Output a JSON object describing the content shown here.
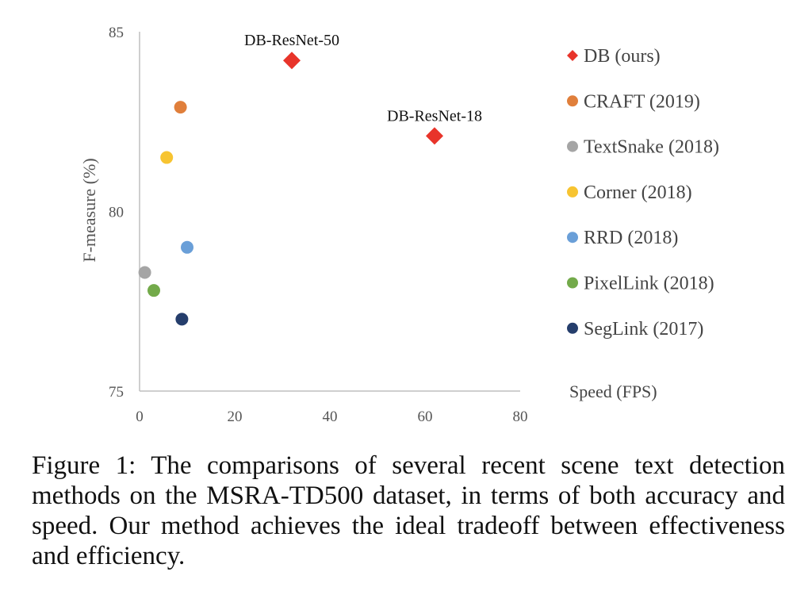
{
  "chart_data": {
    "type": "scatter",
    "xlabel": "Speed (FPS)",
    "ylabel": "F-measure (%)",
    "xlim": [
      0,
      80
    ],
    "ylim": [
      75,
      85
    ],
    "xticks": [
      "0",
      "20",
      "40",
      "60",
      "80"
    ],
    "yticks": [
      "75",
      "80",
      "85"
    ],
    "grid": false,
    "legend_position": "right",
    "series": [
      {
        "name": "DB (ours)",
        "color": "#e8342a",
        "marker": "diamond",
        "points": [
          {
            "x": 32,
            "y": 84.2,
            "label": "DB-ResNet-50"
          },
          {
            "x": 62,
            "y": 82.1,
            "label": "DB-ResNet-18"
          }
        ]
      },
      {
        "name": "CRAFT (2019)",
        "color": "#e07f3b",
        "marker": "circle",
        "points": [
          {
            "x": 8.6,
            "y": 82.9
          }
        ]
      },
      {
        "name": "TextSnake (2018)",
        "color": "#a5a5a5",
        "marker": "circle",
        "points": [
          {
            "x": 1.1,
            "y": 78.3
          }
        ]
      },
      {
        "name": "Corner (2018)",
        "color": "#f7c431",
        "marker": "circle",
        "points": [
          {
            "x": 5.7,
            "y": 81.5
          }
        ]
      },
      {
        "name": "RRD (2018)",
        "color": "#6a9fd8",
        "marker": "circle",
        "points": [
          {
            "x": 10,
            "y": 79.0
          }
        ]
      },
      {
        "name": "PixelLink (2018)",
        "color": "#73aa4a",
        "marker": "circle",
        "points": [
          {
            "x": 3.0,
            "y": 77.8
          }
        ]
      },
      {
        "name": "SegLink (2017)",
        "color": "#253e6c",
        "marker": "circle",
        "points": [
          {
            "x": 8.9,
            "y": 77.0
          }
        ]
      }
    ]
  },
  "caption": "Figure 1: The comparisons of several recent scene text detection methods on the MSRA-TD500 dataset, in terms of both accuracy and speed. Our method achieves the ideal tradeoff between effectiveness and efficiency."
}
